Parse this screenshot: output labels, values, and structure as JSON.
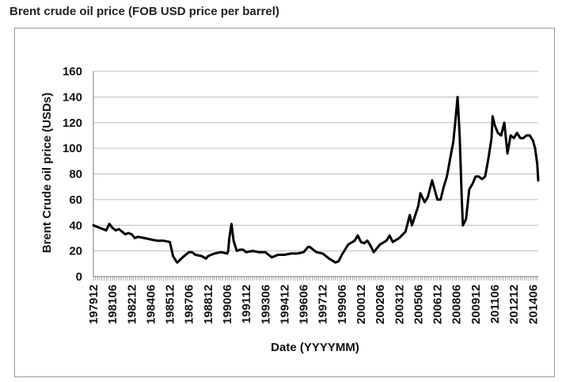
{
  "page": {
    "title": "Brent crude oil price (FOB USD price per barrel)"
  },
  "chart_data": {
    "type": "line",
    "title": "",
    "xlabel": "Date (YYYYMM)",
    "ylabel": "Brent Crude oil price (USDs)",
    "ylim": [
      0,
      160
    ],
    "yticks": [
      0,
      20,
      40,
      60,
      80,
      100,
      120,
      140,
      160
    ],
    "xlim": [
      "1979-12",
      "2014-11"
    ],
    "xtick_labels": [
      "197912",
      "198106",
      "198212",
      "198406",
      "198512",
      "198706",
      "198812",
      "199006",
      "199112",
      "199306",
      "199412",
      "199606",
      "199712",
      "199906",
      "200012",
      "200206",
      "200312",
      "200506",
      "200612",
      "200806",
      "200912",
      "201106",
      "201212",
      "201406"
    ],
    "grid": "horizontal",
    "legend": "none",
    "colors": {
      "line": "#000000",
      "grid": "#bbbbbb",
      "frame": "#9a9a9a"
    },
    "series": [
      {
        "x": [
          "1979-12",
          "1980-06",
          "1980-12",
          "1981-03",
          "1981-06",
          "1981-09",
          "1981-12",
          "1982-06",
          "1982-09",
          "1982-12",
          "1983-03",
          "1983-06",
          "1983-12",
          "1984-06",
          "1984-12",
          "1985-06",
          "1985-12",
          "1986-03",
          "1986-06",
          "1986-07",
          "1986-12",
          "1987-06",
          "1987-09",
          "1987-12",
          "1988-06",
          "1988-10",
          "1988-12",
          "1989-06",
          "1989-12",
          "1990-06",
          "1990-07",
          "1990-08",
          "1990-10",
          "1990-12",
          "1991-03",
          "1991-06",
          "1991-09",
          "1991-12",
          "1992-06",
          "1992-12",
          "1993-06",
          "1993-12",
          "1994-06",
          "1994-12",
          "1995-06",
          "1995-12",
          "1996-06",
          "1996-10",
          "1996-12",
          "1997-06",
          "1997-12",
          "1998-06",
          "1998-12",
          "1999-03",
          "1999-06",
          "1999-12",
          "2000-06",
          "2000-09",
          "2000-12",
          "2001-03",
          "2001-06",
          "2001-09",
          "2001-12",
          "2002-06",
          "2002-12",
          "2003-03",
          "2003-06",
          "2003-12",
          "2004-06",
          "2004-10",
          "2004-12",
          "2005-06",
          "2005-08",
          "2005-12",
          "2006-03",
          "2006-07",
          "2006-12",
          "2007-03",
          "2007-06",
          "2007-09",
          "2007-12",
          "2008-03",
          "2008-05",
          "2008-07",
          "2008-09",
          "2008-11",
          "2008-12",
          "2009-03",
          "2009-06",
          "2009-09",
          "2009-12",
          "2010-03",
          "2010-06",
          "2010-09",
          "2010-12",
          "2011-03",
          "2011-04",
          "2011-06",
          "2011-09",
          "2011-12",
          "2012-03",
          "2012-06",
          "2012-09",
          "2012-12",
          "2013-03",
          "2013-06",
          "2013-09",
          "2013-12",
          "2014-03",
          "2014-06",
          "2014-08",
          "2014-10",
          "2014-11"
        ],
        "values": [
          40,
          38,
          36,
          41,
          38,
          36,
          37,
          33,
          34,
          33,
          30,
          31,
          30,
          29,
          28,
          28,
          27,
          16,
          12,
          11,
          15,
          19,
          19,
          17,
          16,
          14,
          16,
          18,
          19,
          18,
          20,
          30,
          41,
          28,
          20,
          21,
          21,
          19,
          20,
          19,
          19,
          15,
          17,
          17,
          18,
          18,
          19,
          23,
          23,
          19,
          18,
          14,
          11,
          12,
          17,
          25,
          28,
          32,
          27,
          26,
          28,
          24,
          19,
          25,
          28,
          32,
          27,
          30,
          35,
          48,
          40,
          55,
          65,
          58,
          62,
          75,
          60,
          60,
          70,
          78,
          92,
          105,
          122,
          140,
          110,
          60,
          40,
          45,
          68,
          72,
          78,
          78,
          76,
          78,
          92,
          108,
          125,
          118,
          112,
          110,
          120,
          96,
          110,
          108,
          112,
          108,
          108,
          110,
          110,
          106,
          100,
          88,
          75
        ]
      }
    ]
  }
}
